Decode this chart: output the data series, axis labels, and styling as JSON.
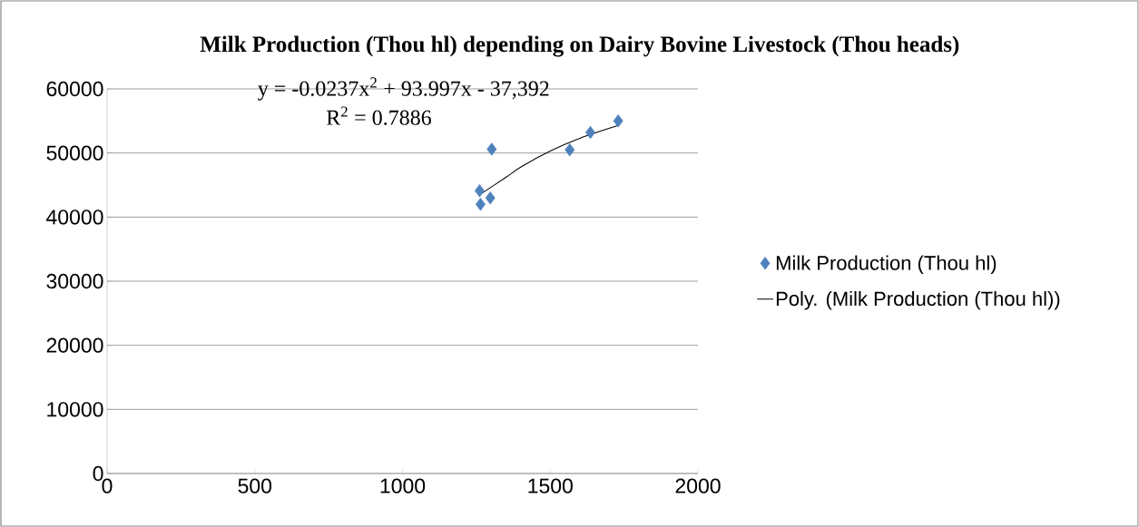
{
  "chart_data": {
    "type": "scatter",
    "title": "Milk Production (Thou hl) depending on Dairy Bovine Livestock (Thou heads)",
    "annotations": [
      "y = -0.0237x$^{2}$ + 93.997x - 37,392",
      "R$^{2}$ = 0.7886"
    ],
    "series": [
      {
        "name": "Milk Production (Thou hl)",
        "marker": "diamond",
        "color": "#4f81bd",
        "x": [
          1261,
          1264,
          1297,
          1302,
          1566,
          1636,
          1730
        ],
        "values": [
          44100,
          42000,
          43000,
          50600,
          50500,
          53200,
          55000
        ]
      },
      {
        "name": "Poly. (Milk Production (Thou hl))",
        "type": "line",
        "marker": "none",
        "line_style": "solid",
        "color": "#000000",
        "x": [
          1265,
          1350,
          1400,
          1500,
          1600,
          1730
        ],
        "values": [
          43600,
          46200,
          47800,
          50300,
          52300,
          54300
        ]
      }
    ],
    "xlim": [
      0,
      2000
    ],
    "xticks": [
      0,
      500,
      1000,
      1500,
      2000
    ],
    "ylim": [
      0,
      60000
    ],
    "yticks": [
      0,
      10000,
      20000,
      30000,
      40000,
      50000,
      60000
    ],
    "grid": "y",
    "legend": "right"
  }
}
